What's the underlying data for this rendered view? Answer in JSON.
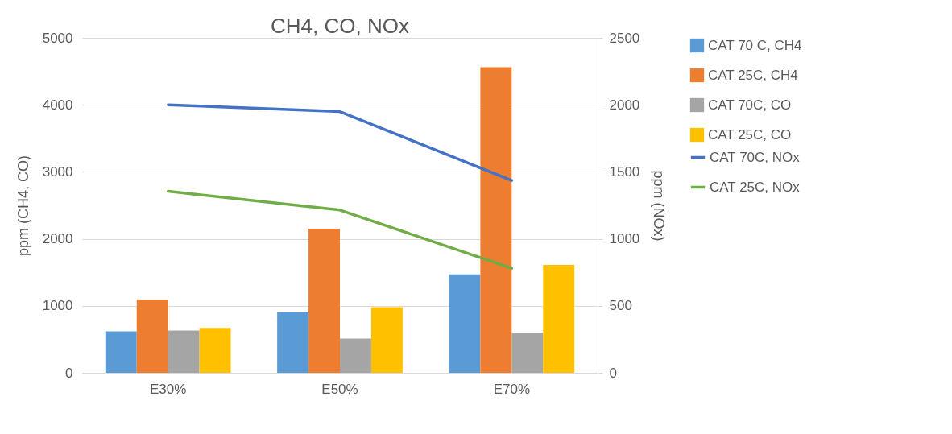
{
  "chart_data": {
    "type": "bar",
    "title": "CH4, CO, NOx",
    "ylabel": "ppm (CH4, CO)",
    "y2label": "ppm (NOx)",
    "categories": [
      "E30%",
      "E50%",
      "E70%"
    ],
    "series": [
      {
        "name": "CAT 70 C, CH4",
        "color": "#5b9bd5",
        "values": [
          620,
          900,
          1470
        ]
      },
      {
        "name": "CAT 25C, CH4",
        "color": "#ed7d31",
        "values": [
          1090,
          2150,
          4560
        ]
      },
      {
        "name": "CAT 70C, CO",
        "color": "#a5a5a5",
        "values": [
          630,
          510,
          600
        ]
      },
      {
        "name": "CAT 25C, CO",
        "color": "#ffc000",
        "values": [
          670,
          980,
          1610
        ]
      },
      {
        "name": "CAT 70C, NOx",
        "color": "#4472c4",
        "type": "line",
        "axis": "y2",
        "values": [
          2000,
          1950,
          1435
        ]
      },
      {
        "name": "CAT 25C, NOx",
        "color": "#70ad47",
        "type": "line",
        "axis": "y2",
        "values": [
          1355,
          1215,
          780
        ]
      }
    ],
    "ylim": [
      0,
      5000
    ],
    "yticks": [
      0,
      1000,
      2000,
      3000,
      4000,
      5000
    ],
    "y2lim": [
      0,
      2500
    ],
    "y2ticks": [
      0,
      500,
      1000,
      1500,
      2000,
      2500
    ],
    "grid": "y",
    "legend": "right"
  }
}
